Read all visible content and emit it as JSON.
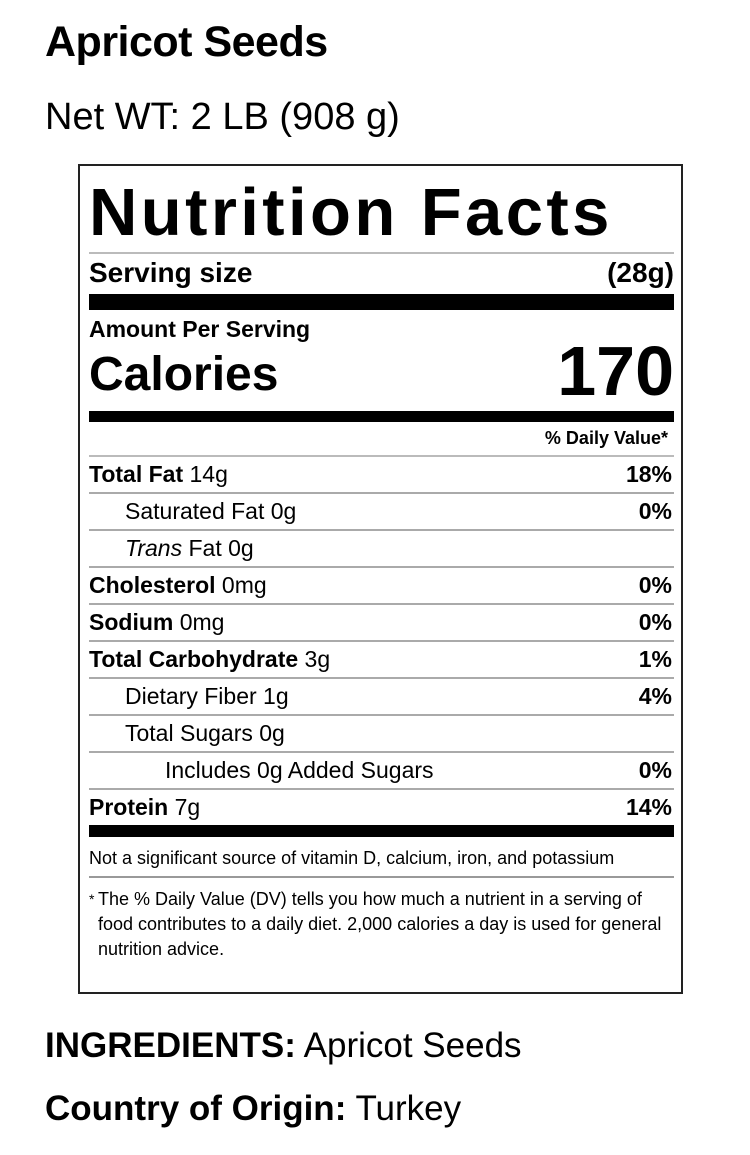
{
  "product": {
    "title": "Apricot Seeds",
    "net_weight": "Net WT: 2 LB (908 g)"
  },
  "label": {
    "title": "Nutrition Facts",
    "serving_size_label": "Serving size",
    "serving_size_value": "(28g)",
    "amount_per_serving": "Amount Per Serving",
    "calories_label": "Calories",
    "calories_value": "170",
    "daily_value_header": "% Daily Value*",
    "nutrients": [
      {
        "name": "Total Fat",
        "amount": "14g",
        "dv": "18%"
      },
      {
        "name": "Saturated Fat",
        "amount": "0g",
        "dv": "0%"
      },
      {
        "name": "Trans",
        "name_suffix": "Fat",
        "amount": "0g",
        "dv": ""
      },
      {
        "name": "Cholesterol",
        "amount": "0mg",
        "dv": "0%"
      },
      {
        "name": "Sodium",
        "amount": "0mg",
        "dv": "0%"
      },
      {
        "name": "Total Carbohydrate",
        "amount": "3g",
        "dv": "1%"
      },
      {
        "name": "Dietary Fiber",
        "amount": "1g",
        "dv": "4%"
      },
      {
        "name": "Total Sugars",
        "amount": "0g",
        "dv": ""
      },
      {
        "name": "Includes 0g Added Sugars",
        "amount": "",
        "dv": "0%"
      },
      {
        "name": "Protein",
        "amount": "7g",
        "dv": "14%"
      }
    ],
    "note": "Not a significant source of vitamin D, calcium, iron, and potassium",
    "footnote_star": "*",
    "footnote": "The % Daily Value (DV) tells you how much a nutrient in a serving of food contributes to a daily diet. 2,000 calories a day is used for general nutrition advice."
  },
  "ingredients": {
    "label": "INGREDIENTS:",
    "value": "Apricot Seeds"
  },
  "origin": {
    "label": "Country of Origin:",
    "value": "Turkey"
  }
}
